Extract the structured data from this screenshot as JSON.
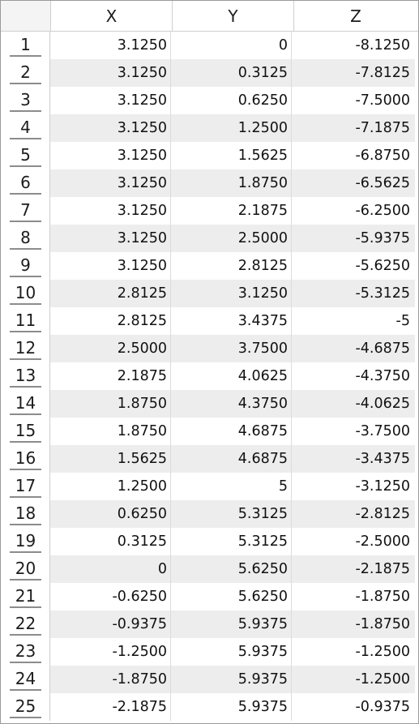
{
  "table": {
    "columns": [
      "X",
      "Y",
      "Z"
    ],
    "rows": [
      {
        "index": "1",
        "x": "3.1250",
        "y": "0",
        "z": "-8.1250"
      },
      {
        "index": "2",
        "x": "3.1250",
        "y": "0.3125",
        "z": "-7.8125"
      },
      {
        "index": "3",
        "x": "3.1250",
        "y": "0.6250",
        "z": "-7.5000"
      },
      {
        "index": "4",
        "x": "3.1250",
        "y": "1.2500",
        "z": "-7.1875"
      },
      {
        "index": "5",
        "x": "3.1250",
        "y": "1.5625",
        "z": "-6.8750"
      },
      {
        "index": "6",
        "x": "3.1250",
        "y": "1.8750",
        "z": "-6.5625"
      },
      {
        "index": "7",
        "x": "3.1250",
        "y": "2.1875",
        "z": "-6.2500"
      },
      {
        "index": "8",
        "x": "3.1250",
        "y": "2.5000",
        "z": "-5.9375"
      },
      {
        "index": "9",
        "x": "3.1250",
        "y": "2.8125",
        "z": "-5.6250"
      },
      {
        "index": "10",
        "x": "2.8125",
        "y": "3.1250",
        "z": "-5.3125"
      },
      {
        "index": "11",
        "x": "2.8125",
        "y": "3.4375",
        "z": "-5"
      },
      {
        "index": "12",
        "x": "2.5000",
        "y": "3.7500",
        "z": "-4.6875"
      },
      {
        "index": "13",
        "x": "2.1875",
        "y": "4.0625",
        "z": "-4.3750"
      },
      {
        "index": "14",
        "x": "1.8750",
        "y": "4.3750",
        "z": "-4.0625"
      },
      {
        "index": "15",
        "x": "1.8750",
        "y": "4.6875",
        "z": "-3.7500"
      },
      {
        "index": "16",
        "x": "1.5625",
        "y": "4.6875",
        "z": "-3.4375"
      },
      {
        "index": "17",
        "x": "1.2500",
        "y": "5",
        "z": "-3.1250"
      },
      {
        "index": "18",
        "x": "0.6250",
        "y": "5.3125",
        "z": "-2.8125"
      },
      {
        "index": "19",
        "x": "0.3125",
        "y": "5.3125",
        "z": "-2.5000"
      },
      {
        "index": "20",
        "x": "0",
        "y": "5.6250",
        "z": "-2.1875"
      },
      {
        "index": "21",
        "x": "-0.6250",
        "y": "5.6250",
        "z": "-1.8750"
      },
      {
        "index": "22",
        "x": "-0.9375",
        "y": "5.9375",
        "z": "-1.8750"
      },
      {
        "index": "23",
        "x": "-1.2500",
        "y": "5.9375",
        "z": "-1.2500"
      },
      {
        "index": "24",
        "x": "-1.8750",
        "y": "5.9375",
        "z": "-1.2500"
      },
      {
        "index": "25",
        "x": "-2.1875",
        "y": "5.9375",
        "z": "-0.9375"
      }
    ]
  },
  "colors": {
    "alt_row": "#ededed",
    "grid_line": "#cfcfcf",
    "row_header_underline": "#8c8c8c"
  }
}
